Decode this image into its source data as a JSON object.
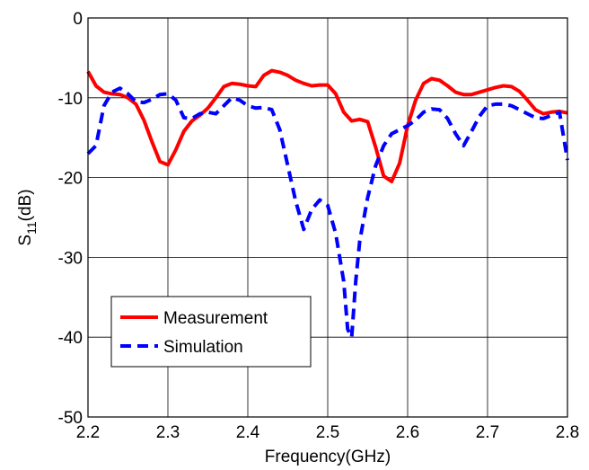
{
  "chart_data": {
    "type": "line",
    "title": "",
    "xlabel": "Frequency(GHz)",
    "ylabel_main": "S",
    "ylabel_sub": "11",
    "ylabel_unit": "(dB)",
    "xlim": [
      2.2,
      2.8
    ],
    "ylim": [
      -50,
      0
    ],
    "x_ticks": [
      2.2,
      2.3,
      2.4,
      2.5,
      2.6,
      2.7,
      2.8
    ],
    "x_tick_labels": [
      "2.2",
      "2.3",
      "2.4",
      "2.5",
      "2.6",
      "2.7",
      "2.8"
    ],
    "y_ticks": [
      0,
      -10,
      -20,
      -30,
      -40,
      -50
    ],
    "y_tick_labels": [
      "0",
      "-10",
      "-20",
      "-30",
      "-40",
      "-50"
    ],
    "grid": true,
    "legend_position": "lower-left",
    "series": [
      {
        "name": "Measurement",
        "color": "#ff0000",
        "dash": "solid",
        "x": [
          2.2,
          2.21,
          2.22,
          2.23,
          2.24,
          2.25,
          2.26,
          2.27,
          2.28,
          2.29,
          2.3,
          2.31,
          2.32,
          2.33,
          2.34,
          2.35,
          2.36,
          2.37,
          2.38,
          2.39,
          2.4,
          2.41,
          2.42,
          2.43,
          2.44,
          2.45,
          2.46,
          2.47,
          2.48,
          2.49,
          2.5,
          2.51,
          2.52,
          2.53,
          2.54,
          2.55,
          2.56,
          2.57,
          2.58,
          2.59,
          2.6,
          2.61,
          2.62,
          2.63,
          2.64,
          2.65,
          2.66,
          2.67,
          2.68,
          2.69,
          2.7,
          2.71,
          2.72,
          2.73,
          2.74,
          2.75,
          2.76,
          2.77,
          2.78,
          2.79,
          2.8
        ],
        "y": [
          -6.7,
          -8.5,
          -9.3,
          -9.5,
          -9.6,
          -10.0,
          -10.8,
          -12.8,
          -15.5,
          -18.0,
          -18.4,
          -16.5,
          -14.2,
          -12.9,
          -12.2,
          -11.3,
          -10.0,
          -8.6,
          -8.2,
          -8.3,
          -8.5,
          -8.6,
          -7.2,
          -6.6,
          -6.8,
          -7.2,
          -7.8,
          -8.2,
          -8.5,
          -8.4,
          -8.4,
          -9.5,
          -11.8,
          -12.9,
          -12.7,
          -13.0,
          -16.2,
          -19.8,
          -20.5,
          -18.2,
          -13.5,
          -10.3,
          -8.2,
          -7.6,
          -7.8,
          -8.5,
          -9.3,
          -9.6,
          -9.6,
          -9.3,
          -9.0,
          -8.7,
          -8.5,
          -8.6,
          -9.2,
          -10.3,
          -11.5,
          -12.0,
          -11.8,
          -11.7,
          -11.9
        ]
      },
      {
        "name": "Simulation",
        "color": "#0000ff",
        "dash": "dashed",
        "x": [
          2.2,
          2.21,
          2.22,
          2.23,
          2.24,
          2.25,
          2.26,
          2.27,
          2.28,
          2.29,
          2.3,
          2.31,
          2.32,
          2.33,
          2.34,
          2.35,
          2.36,
          2.37,
          2.38,
          2.39,
          2.4,
          2.41,
          2.42,
          2.43,
          2.44,
          2.45,
          2.46,
          2.47,
          2.48,
          2.49,
          2.5,
          2.51,
          2.52,
          2.525,
          2.53,
          2.535,
          2.54,
          2.55,
          2.56,
          2.57,
          2.58,
          2.59,
          2.6,
          2.61,
          2.62,
          2.63,
          2.64,
          2.65,
          2.66,
          2.67,
          2.68,
          2.69,
          2.7,
          2.71,
          2.72,
          2.73,
          2.74,
          2.75,
          2.76,
          2.77,
          2.78,
          2.79,
          2.8
        ],
        "y": [
          -17.0,
          -16.0,
          -11.0,
          -9.3,
          -8.8,
          -9.5,
          -10.5,
          -10.6,
          -10.2,
          -9.6,
          -9.5,
          -10.3,
          -12.5,
          -12.6,
          -12.0,
          -11.8,
          -12.0,
          -11.0,
          -10.0,
          -10.3,
          -11.0,
          -11.3,
          -11.2,
          -11.5,
          -14.0,
          -18.5,
          -23.0,
          -26.5,
          -24.0,
          -22.8,
          -23.5,
          -27.0,
          -33.0,
          -39.0,
          -40.0,
          -33.0,
          -28.0,
          -22.5,
          -18.5,
          -16.0,
          -14.5,
          -14.0,
          -13.5,
          -12.8,
          -11.8,
          -11.4,
          -11.5,
          -12.6,
          -14.5,
          -16.0,
          -14.2,
          -12.3,
          -11.0,
          -10.8,
          -10.8,
          -11.0,
          -11.5,
          -12.0,
          -12.5,
          -12.6,
          -12.2,
          -11.8,
          -17.8
        ]
      }
    ]
  }
}
